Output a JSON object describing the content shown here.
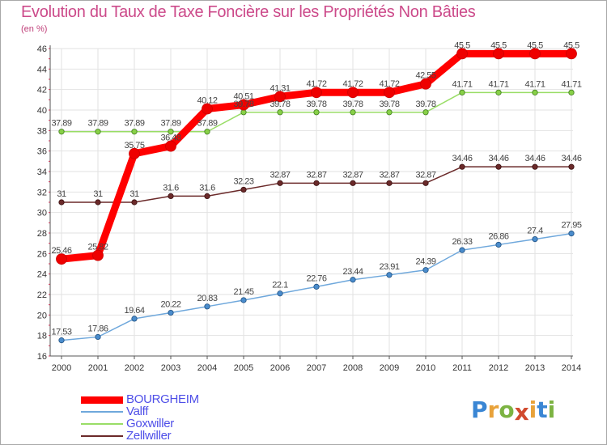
{
  "chart_data": {
    "type": "line",
    "title": "Evolution du Taux de Taxe Foncière sur les Propriétés Non Bâties",
    "ylabel": "(en %)",
    "xlabel": "",
    "categories": [
      "2000",
      "2001",
      "2002",
      "2003",
      "2004",
      "2005",
      "2006",
      "2007",
      "2008",
      "2009",
      "2010",
      "2011",
      "2012",
      "2013",
      "2014"
    ],
    "ylim": [
      16,
      46
    ],
    "yticks": [
      16,
      18,
      20,
      22,
      24,
      26,
      28,
      30,
      32,
      34,
      36,
      38,
      40,
      42,
      44,
      46
    ],
    "grid": true,
    "legend_position": "bottom-left",
    "series": [
      {
        "name": "BOURGHEIM",
        "color": "#ff0000",
        "values": [
          25.46,
          25.82,
          35.75,
          36.48,
          40.12,
          40.51,
          41.31,
          41.72,
          41.72,
          41.72,
          42.55,
          45.5,
          45.5,
          45.5,
          45.5
        ],
        "labels": [
          "25.46",
          "25.82",
          "35.75",
          "36.48",
          "40.12",
          "40.51",
          "41.31",
          "41.72",
          "41.72",
          "41.72",
          "42.55",
          "45.5",
          "45.5",
          "45.5",
          "45.5"
        ]
      },
      {
        "name": "Valff",
        "color": "#6fa8dc",
        "values": [
          17.53,
          17.86,
          19.64,
          20.22,
          20.83,
          21.45,
          22.1,
          22.76,
          23.44,
          23.91,
          24.39,
          26.33,
          26.86,
          27.4,
          27.95
        ],
        "labels": [
          "17.53",
          "17.86",
          "19.64",
          "20.22",
          "20.83",
          "21.45",
          "22.1",
          "22.76",
          "23.44",
          "23.91",
          "24.39",
          "26.33",
          "26.86",
          "27.4",
          "27.95"
        ]
      },
      {
        "name": "Goxwiller",
        "color": "#99dd66",
        "values": [
          37.89,
          37.89,
          37.89,
          37.89,
          37.89,
          39.78,
          39.78,
          39.78,
          39.78,
          39.78,
          39.78,
          41.71,
          41.71,
          41.71,
          41.71
        ],
        "labels": [
          "37.89",
          "37.89",
          "37.89",
          "37.89",
          "37.89",
          "39.78",
          "39.78",
          "39.78",
          "39.78",
          "39.78",
          "39.78",
          "41.71",
          "41.71",
          "41.71",
          "41.71"
        ]
      },
      {
        "name": "Zellwiller",
        "color": "#6b2a2a",
        "values": [
          31,
          31,
          31,
          31.6,
          31.6,
          32.23,
          32.87,
          32.87,
          32.87,
          32.87,
          32.87,
          34.46,
          34.46,
          34.46,
          34.46
        ],
        "labels": [
          "31",
          "31",
          "31",
          "31.6",
          "31.6",
          "32.23",
          "32.87",
          "32.87",
          "32.87",
          "32.87",
          "32.87",
          "34.46",
          "34.46",
          "34.46",
          "34.46"
        ]
      }
    ]
  },
  "logo": {
    "text": "Proxiti"
  }
}
